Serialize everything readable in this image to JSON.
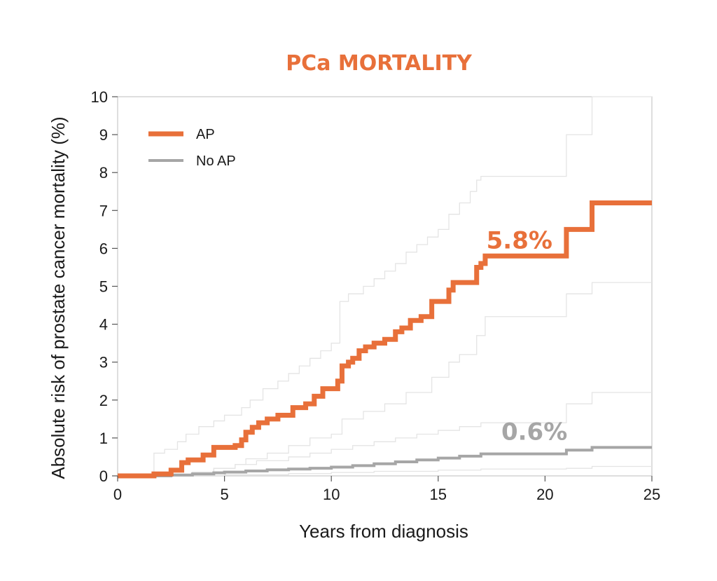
{
  "chart_data": {
    "type": "line",
    "title": "PCa MORTALITY",
    "xlabel": "Years from diagnosis",
    "ylabel": "Absolute risk of prostate cancer mortality (%)",
    "xlim": [
      0,
      25
    ],
    "ylim": [
      0,
      10
    ],
    "x_ticks": [
      "0",
      "5",
      "10",
      "15",
      "20",
      "25"
    ],
    "y_ticks": [
      "0",
      "1",
      "2",
      "3",
      "4",
      "5",
      "6",
      "7",
      "8",
      "9",
      "10"
    ],
    "grid": false,
    "legend_position": "top-left",
    "step": true,
    "series": [
      {
        "name": "AP",
        "color": "#E8703A",
        "x": [
          0,
          1.7,
          2.5,
          3.0,
          3.3,
          4.0,
          4.5,
          5.5,
          5.8,
          6.0,
          6.3,
          6.6,
          7.0,
          7.5,
          8.2,
          8.8,
          9.2,
          9.6,
          10.3,
          10.5,
          10.8,
          11.0,
          11.3,
          11.6,
          12.0,
          12.5,
          13.0,
          13.3,
          13.7,
          14.2,
          14.7,
          15.5,
          15.7,
          16.8,
          17.0,
          17.2,
          21.0,
          22.2,
          25.0
        ],
        "y": [
          0,
          0.05,
          0.15,
          0.35,
          0.42,
          0.55,
          0.75,
          0.8,
          0.95,
          1.15,
          1.28,
          1.4,
          1.5,
          1.6,
          1.8,
          1.9,
          2.1,
          2.3,
          2.5,
          2.9,
          3.0,
          3.1,
          3.3,
          3.4,
          3.5,
          3.6,
          3.8,
          3.9,
          4.1,
          4.2,
          4.6,
          4.9,
          5.1,
          5.5,
          5.6,
          5.8,
          6.5,
          7.2,
          7.2
        ]
      },
      {
        "name": "No AP",
        "color": "#A6A6A6",
        "x": [
          0,
          2.5,
          3.5,
          4.5,
          5.0,
          6.0,
          7.0,
          8.0,
          9.0,
          10.0,
          11.0,
          12.0,
          13.0,
          14.0,
          15.0,
          16.0,
          17.0,
          21.0,
          22.2,
          25.0
        ],
        "y": [
          0,
          0.02,
          0.05,
          0.08,
          0.1,
          0.13,
          0.16,
          0.18,
          0.2,
          0.23,
          0.27,
          0.32,
          0.37,
          0.42,
          0.47,
          0.52,
          0.58,
          0.68,
          0.75,
          0.75
        ]
      },
      {
        "color": "#E4E4E4",
        "x": [
          0,
          1.7,
          2.2,
          2.8,
          3.2,
          3.8,
          4.5,
          5.0,
          5.8,
          6.2,
          6.8,
          7.5,
          8.0,
          8.5,
          9.0,
          9.5,
          10.0,
          10.4,
          10.8,
          11.5,
          12.0,
          12.5,
          13.0,
          13.5,
          14.0,
          14.5,
          15.0,
          15.5,
          16.0,
          16.5,
          16.8,
          17.0,
          21.0,
          22.2,
          25.0
        ],
        "y": [
          0,
          0.6,
          0.7,
          0.9,
          1.1,
          1.3,
          1.45,
          1.6,
          1.8,
          2.0,
          2.3,
          2.5,
          2.7,
          2.9,
          3.1,
          3.3,
          3.5,
          4.6,
          4.8,
          5.0,
          5.2,
          5.4,
          5.6,
          5.9,
          6.1,
          6.3,
          6.5,
          6.9,
          7.2,
          7.5,
          7.8,
          7.9,
          9.0,
          10.0,
          10.0
        ]
      },
      {
        "color": "#E4E4E4",
        "x": [
          0,
          2.5,
          3.5,
          4.5,
          5.5,
          6.0,
          7.0,
          8.0,
          9.0,
          10.0,
          10.5,
          11.5,
          12.5,
          13.5,
          14.7,
          15.5,
          16.0,
          16.8,
          17.2,
          21.0,
          22.2,
          25.0
        ],
        "y": [
          0,
          0.03,
          0.1,
          0.2,
          0.3,
          0.45,
          0.6,
          0.8,
          1.0,
          1.1,
          1.5,
          1.7,
          1.9,
          2.2,
          2.6,
          3.0,
          3.2,
          3.7,
          4.2,
          4.8,
          5.1,
          5.1
        ]
      },
      {
        "color": "#E4E4E4",
        "x": [
          0,
          2.5,
          3.5,
          4.5,
          5.5,
          6.5,
          8.0,
          9.0,
          10.0,
          11.0,
          12.0,
          13.0,
          14.0,
          15.0,
          16.0,
          17.0,
          21.0,
          22.2,
          25.0
        ],
        "y": [
          0,
          0.05,
          0.1,
          0.2,
          0.3,
          0.4,
          0.5,
          0.6,
          0.7,
          0.8,
          0.9,
          1.0,
          1.1,
          1.2,
          1.3,
          1.4,
          1.9,
          2.2,
          2.2
        ]
      },
      {
        "color": "#E4E4E4",
        "x": [
          0,
          3.0,
          5.0,
          8.0,
          10.0,
          12.0,
          15.0,
          17.0,
          21.0,
          22.2,
          25.0
        ],
        "y": [
          0,
          0.01,
          0.03,
          0.06,
          0.09,
          0.12,
          0.15,
          0.18,
          0.2,
          0.25,
          0.25
        ]
      }
    ],
    "annotations": [
      {
        "text": "5.8%",
        "x": 18.8,
        "y": 6.0,
        "color": "#E8703A"
      },
      {
        "text": "0.6%",
        "x": 19.5,
        "y": 0.95,
        "color": "#A6A6A6"
      }
    ]
  }
}
